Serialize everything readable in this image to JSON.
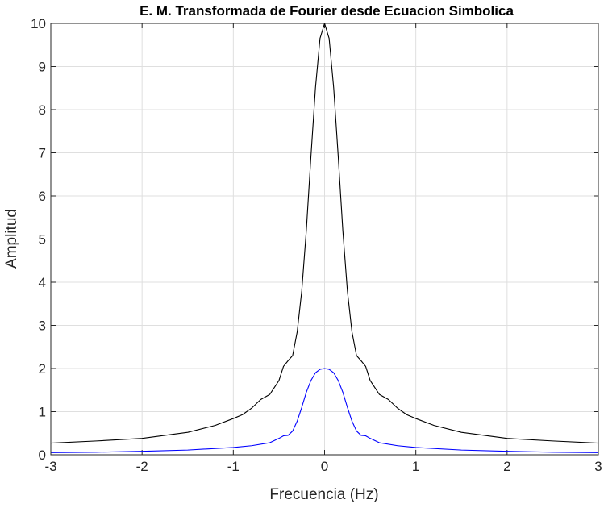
{
  "chart_data": {
    "type": "line",
    "title": "E. M. Transformada de Fourier desde Ecuacion Simbolica",
    "xlabel": "Frecuencia (Hz)",
    "ylabel": "Amplitud",
    "xlim": [
      -3,
      3
    ],
    "ylim": [
      0,
      10
    ],
    "xticks": [
      -3,
      -2,
      -1,
      0,
      1,
      2,
      3
    ],
    "yticks": [
      0,
      1,
      2,
      3,
      4,
      5,
      6,
      7,
      8,
      9,
      10
    ],
    "xtick_labels": [
      "-3",
      "-2",
      "-1",
      "0",
      "1",
      "2",
      "3"
    ],
    "ytick_labels": [
      "0",
      "1",
      "2",
      "3",
      "4",
      "5",
      "6",
      "7",
      "8",
      "9",
      "10"
    ],
    "grid": true,
    "series": [
      {
        "color": "#000000",
        "x": [
          -3,
          -2.5,
          -2,
          -1.5,
          -1.2,
          -1.0,
          -0.9,
          -0.8,
          -0.7,
          -0.6,
          -0.5,
          -0.45,
          -0.4,
          -0.35,
          -0.3,
          -0.25,
          -0.2,
          -0.15,
          -0.1,
          -0.05,
          0,
          0.05,
          0.1,
          0.15,
          0.2,
          0.25,
          0.3,
          0.35,
          0.4,
          0.45,
          0.5,
          0.6,
          0.7,
          0.8,
          0.9,
          1.0,
          1.2,
          1.5,
          2,
          2.5,
          3
        ],
        "y": [
          0.27,
          0.32,
          0.38,
          0.52,
          0.68,
          0.84,
          0.93,
          1.08,
          1.28,
          1.4,
          1.72,
          2.05,
          2.18,
          2.3,
          2.85,
          3.8,
          5.2,
          6.9,
          8.5,
          9.65,
          10.0,
          9.65,
          8.5,
          6.9,
          5.2,
          3.8,
          2.85,
          2.3,
          2.18,
          2.05,
          1.72,
          1.4,
          1.28,
          1.08,
          0.93,
          0.84,
          0.68,
          0.52,
          0.38,
          0.32,
          0.27
        ]
      },
      {
        "color": "#0000ff",
        "x": [
          -3,
          -2.5,
          -2,
          -1.5,
          -1.0,
          -0.8,
          -0.6,
          -0.5,
          -0.45,
          -0.4,
          -0.35,
          -0.3,
          -0.25,
          -0.2,
          -0.15,
          -0.1,
          -0.05,
          0,
          0.05,
          0.1,
          0.15,
          0.2,
          0.25,
          0.3,
          0.35,
          0.4,
          0.45,
          0.5,
          0.6,
          0.8,
          1.0,
          1.5,
          2,
          2.5,
          3
        ],
        "y": [
          0.05,
          0.06,
          0.08,
          0.11,
          0.17,
          0.21,
          0.28,
          0.38,
          0.44,
          0.45,
          0.55,
          0.78,
          1.1,
          1.45,
          1.72,
          1.9,
          1.98,
          2.0,
          1.98,
          1.9,
          1.72,
          1.45,
          1.1,
          0.78,
          0.55,
          0.45,
          0.44,
          0.38,
          0.28,
          0.21,
          0.17,
          0.11,
          0.08,
          0.06,
          0.05
        ]
      }
    ]
  }
}
